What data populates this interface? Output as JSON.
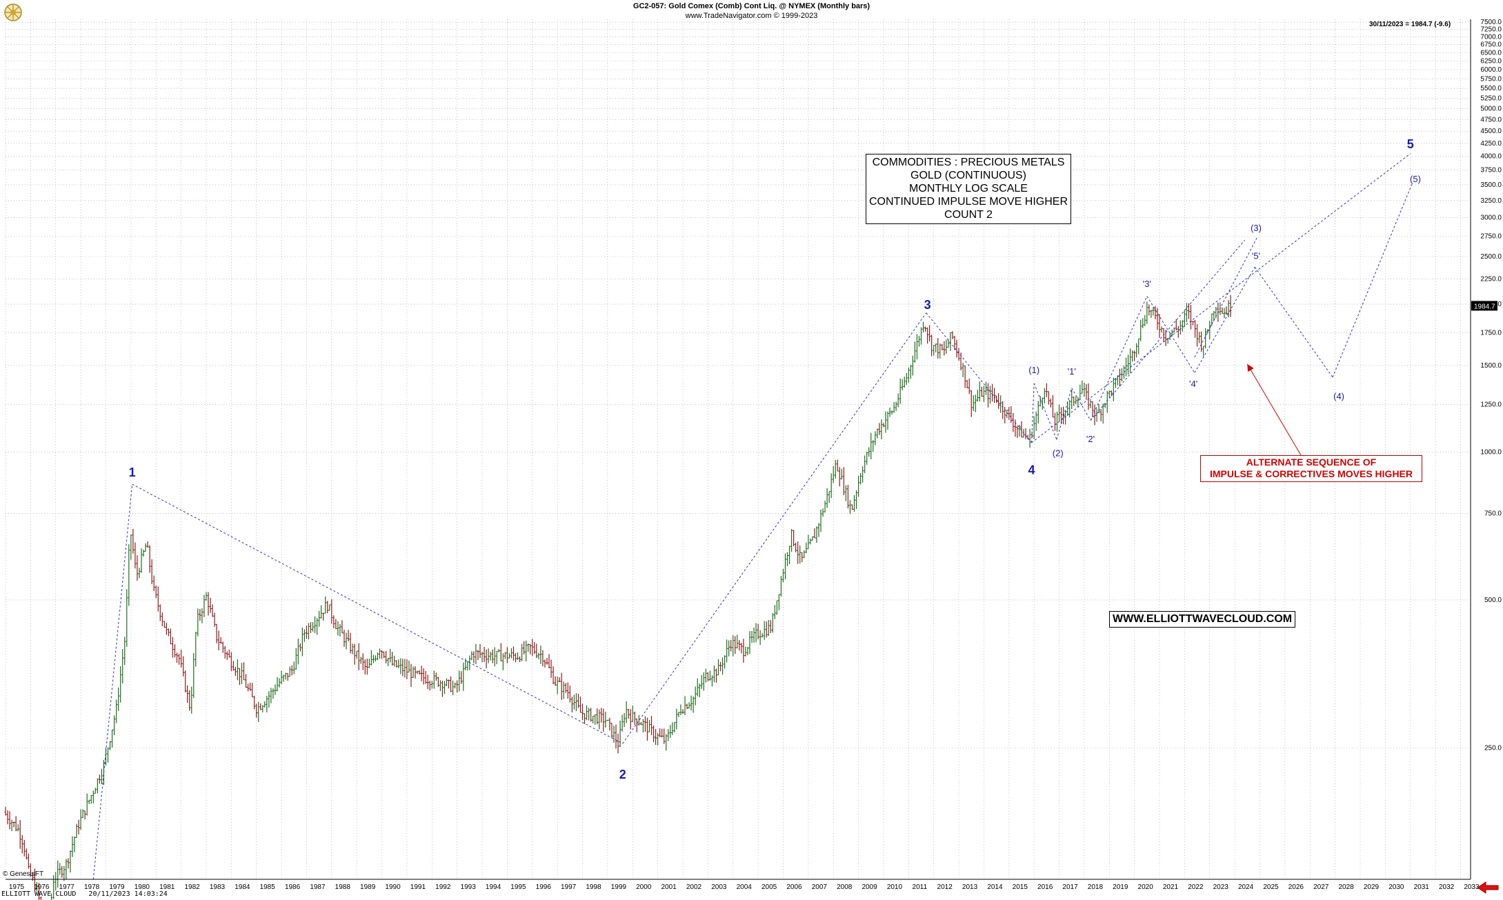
{
  "header": {
    "title": "GC2-057:  Gold Comex (Comb) Cont Liq. @ NYMEX  (Monthly bars)",
    "subtitle": "www.TradeNavigator.com © 1999-2023"
  },
  "last_bar_label": "30/11/2023 = 1984.7 (-9.6)",
  "last_price_tag": "1984.7",
  "info_box": {
    "lines": [
      "COMMODITIES : PRECIOUS METALS",
      "GOLD (CONTINUOUS)",
      "MONTHLY LOG SCALE",
      "CONTINUED IMPULSE MOVE HIGHER",
      "COUNT 2"
    ]
  },
  "website_box": "WWW.ELLIOTTWAVECLOUD.COM",
  "alternate_box": {
    "lines": [
      "ALTERNATE SEQUENCE OF",
      "IMPULSE & CORRECTIVES MOVES HIGHER"
    ]
  },
  "footer": {
    "copyright": "© GenesisFT",
    "status_line": "ELLIOTT WAVE CLOUD   20/11/2023 14:03:24"
  },
  "colors": {
    "wave_labels": "#1a1ab4",
    "dotted_lines": "#3030c0",
    "alternate_text": "#d40000",
    "up_bar": "#1f6b1f",
    "down_bar": "#8b1a1a",
    "grid": "#9a9a9a"
  },
  "chart_data": {
    "type": "ohlc-monthly",
    "scale": "log",
    "grid": true,
    "ylim": [
      135,
      7600
    ],
    "xlim": [
      1975.0,
      2033.4
    ],
    "x_tick_labels": [
      "1975",
      "1976",
      "1977",
      "1978",
      "1979",
      "1980",
      "1981",
      "1982",
      "1983",
      "1984",
      "1985",
      "1986",
      "1987",
      "1988",
      "1989",
      "1990",
      "1991",
      "1992",
      "1993",
      "1994",
      "1995",
      "1996",
      "1997",
      "1998",
      "1999",
      "2000",
      "2001",
      "2002",
      "2003",
      "2004",
      "2005",
      "2006",
      "2007",
      "2008",
      "2009",
      "2010",
      "2011",
      "2012",
      "2013",
      "2014",
      "2015",
      "2016",
      "2017",
      "2018",
      "2019",
      "2020",
      "2021",
      "2022",
      "2023",
      "2024",
      "2025",
      "2026",
      "2027",
      "2028",
      "2029",
      "2030",
      "2031",
      "2032",
      "2033"
    ],
    "y_tick_labels": [
      "7500.0",
      "7250.0",
      "7000.0",
      "6750.0",
      "6500.0",
      "6250.0",
      "6000.0",
      "5750.0",
      "5500.0",
      "5250.0",
      "5000.0",
      "4750.0",
      "4500.0",
      "4250.0",
      "4000.0",
      "3750.0",
      "3500.0",
      "3250.0",
      "3000.0",
      "2750.0",
      "2500.0",
      "2250.0",
      "2000.0",
      "1750.0",
      "1500.0",
      "1250.0",
      "1000.0",
      "750.0",
      "500.0",
      "250.0"
    ],
    "price_path": [
      [
        1975.0,
        185
      ],
      [
        1975.3,
        178
      ],
      [
        1975.6,
        170
      ],
      [
        1975.8,
        160
      ],
      [
        1976.0,
        140
      ],
      [
        1976.3,
        130
      ],
      [
        1976.6,
        113
      ],
      [
        1976.75,
        105
      ],
      [
        1977.0,
        135
      ],
      [
        1977.5,
        145
      ],
      [
        1978.0,
        175
      ],
      [
        1978.5,
        200
      ],
      [
        1979.0,
        230
      ],
      [
        1979.5,
        300
      ],
      [
        1979.85,
        420
      ],
      [
        1980.05,
        700
      ],
      [
        1980.3,
        560
      ],
      [
        1980.7,
        650
      ],
      [
        1981.0,
        520
      ],
      [
        1981.5,
        430
      ],
      [
        1982.0,
        380
      ],
      [
        1982.45,
        300
      ],
      [
        1982.7,
        450
      ],
      [
        1983.1,
        510
      ],
      [
        1983.5,
        420
      ],
      [
        1984.0,
        380
      ],
      [
        1984.5,
        350
      ],
      [
        1985.1,
        300
      ],
      [
        1985.6,
        320
      ],
      [
        1986.0,
        340
      ],
      [
        1986.5,
        360
      ],
      [
        1987.0,
        430
      ],
      [
        1987.5,
        460
      ],
      [
        1987.9,
        490
      ],
      [
        1988.3,
        440
      ],
      [
        1988.7,
        410
      ],
      [
        1989.0,
        390
      ],
      [
        1989.5,
        360
      ],
      [
        1990.0,
        400
      ],
      [
        1990.5,
        370
      ],
      [
        1991.0,
        360
      ],
      [
        1991.5,
        350
      ],
      [
        1992.0,
        345
      ],
      [
        1992.5,
        340
      ],
      [
        1993.0,
        330
      ],
      [
        1993.4,
        360
      ],
      [
        1993.7,
        390
      ],
      [
        1994.5,
        385
      ],
      [
        1995.5,
        385
      ],
      [
        1996.0,
        400
      ],
      [
        1996.5,
        385
      ],
      [
        1997.0,
        340
      ],
      [
        1997.5,
        325
      ],
      [
        1998.0,
        295
      ],
      [
        1998.5,
        290
      ],
      [
        1999.0,
        285
      ],
      [
        1999.5,
        255
      ],
      [
        1999.8,
        300
      ],
      [
        2000.0,
        290
      ],
      [
        2000.5,
        280
      ],
      [
        2001.0,
        265
      ],
      [
        2001.4,
        258
      ],
      [
        2002.0,
        300
      ],
      [
        2002.5,
        315
      ],
      [
        2003.0,
        350
      ],
      [
        2003.5,
        360
      ],
      [
        2004.0,
        410
      ],
      [
        2004.5,
        395
      ],
      [
        2005.0,
        425
      ],
      [
        2005.6,
        440
      ],
      [
        2006.0,
        550
      ],
      [
        2006.4,
        680
      ],
      [
        2006.8,
        600
      ],
      [
        2007.3,
        670
      ],
      [
        2007.8,
        800
      ],
      [
        2008.2,
        950
      ],
      [
        2008.8,
        760
      ],
      [
        2009.2,
        920
      ],
      [
        2009.8,
        1100
      ],
      [
        2010.5,
        1230
      ],
      [
        2011.0,
        1420
      ],
      [
        2011.7,
        1850
      ],
      [
        2012.0,
        1650
      ],
      [
        2012.5,
        1600
      ],
      [
        2012.8,
        1730
      ],
      [
        2013.3,
        1450
      ],
      [
        2013.6,
        1250
      ],
      [
        2014.0,
        1320
      ],
      [
        2014.5,
        1300
      ],
      [
        2015.0,
        1200
      ],
      [
        2015.5,
        1100
      ],
      [
        2015.9,
        1060
      ],
      [
        2016.5,
        1360
      ],
      [
        2016.9,
        1150
      ],
      [
        2017.5,
        1250
      ],
      [
        2018.0,
        1340
      ],
      [
        2018.6,
        1180
      ],
      [
        2019.0,
        1300
      ],
      [
        2019.5,
        1420
      ],
      [
        2020.0,
        1580
      ],
      [
        2020.6,
        1970
      ],
      [
        2021.0,
        1850
      ],
      [
        2021.3,
        1720
      ],
      [
        2021.9,
        1800
      ],
      [
        2022.2,
        1930
      ],
      [
        2022.8,
        1640
      ],
      [
        2023.3,
        2000
      ],
      [
        2023.65,
        1920
      ],
      [
        2023.9,
        1985
      ]
    ],
    "wave_labels": [
      {
        "text": "1",
        "x": 1980.05,
        "p": 880,
        "size": "large"
      },
      {
        "text": "2",
        "x": 1999.6,
        "p": 228,
        "size": "large",
        "below": true
      },
      {
        "text": "3",
        "x": 2011.75,
        "p": 1930,
        "size": "large"
      },
      {
        "text": "4",
        "x": 2015.9,
        "p": 950,
        "size": "large",
        "below": true
      },
      {
        "text": "5",
        "x": 2031.0,
        "p": 4100,
        "size": "large"
      },
      {
        "text": "(1)",
        "x": 2016.0,
        "p": 1430,
        "size": "small"
      },
      {
        "text": "(2)",
        "x": 2016.95,
        "p": 1020,
        "size": "small",
        "below": true
      },
      {
        "text": "'1'",
        "x": 2017.5,
        "p": 1420,
        "size": "small"
      },
      {
        "text": "'2'",
        "x": 2018.25,
        "p": 1090,
        "size": "small",
        "below": true
      },
      {
        "text": "'3'",
        "x": 2020.5,
        "p": 2140,
        "size": "small"
      },
      {
        "text": "'4'",
        "x": 2022.35,
        "p": 1410,
        "size": "small",
        "below": true
      },
      {
        "text": "'5'",
        "x": 2024.85,
        "p": 2440,
        "size": "small"
      },
      {
        "text": "(3)",
        "x": 2024.85,
        "p": 2780,
        "size": "small"
      },
      {
        "text": "(4)",
        "x": 2028.15,
        "p": 1330,
        "size": "small",
        "below": true
      },
      {
        "text": "(5)",
        "x": 2031.2,
        "p": 3500,
        "size": "small"
      }
    ],
    "projection_lines": [
      [
        [
          1978.5,
          135
        ],
        [
          1980.05,
          860
        ]
      ],
      [
        [
          1980.05,
          860
        ],
        [
          1999.6,
          255
        ]
      ],
      [
        [
          1999.6,
          255
        ],
        [
          2011.7,
          1920
        ]
      ],
      [
        [
          2011.7,
          1920
        ],
        [
          2015.9,
          1045
        ]
      ],
      [
        [
          2015.9,
          1045
        ],
        [
          2016.0,
          1380
        ]
      ],
      [
        [
          2016.0,
          1380
        ],
        [
          2016.9,
          1060
        ]
      ],
      [
        [
          2016.9,
          1060
        ],
        [
          2017.5,
          1350
        ]
      ],
      [
        [
          2017.5,
          1350
        ],
        [
          2018.25,
          1160
        ]
      ],
      [
        [
          2018.25,
          1160
        ],
        [
          2020.5,
          2075
        ]
      ],
      [
        [
          2020.5,
          2075
        ],
        [
          2022.4,
          1450
        ]
      ],
      [
        [
          2022.4,
          1450
        ],
        [
          2024.8,
          2380
        ]
      ],
      [
        [
          2024.8,
          2380
        ],
        [
          2027.9,
          1420
        ]
      ],
      [
        [
          2027.9,
          1420
        ],
        [
          2031.1,
          3550
        ]
      ],
      [
        [
          2015.9,
          1045
        ],
        [
          2031.0,
          4050
        ]
      ],
      [
        [
          2018.25,
          1160
        ],
        [
          2024.4,
          2700
        ]
      ],
      [
        [
          2022.4,
          1560
        ],
        [
          2024.9,
          2740
        ]
      ]
    ],
    "annotation_arrow": {
      "from_text": "ALTERNATE SEQUENCE OF",
      "tip": [
        2024.5,
        1510
      ]
    }
  }
}
